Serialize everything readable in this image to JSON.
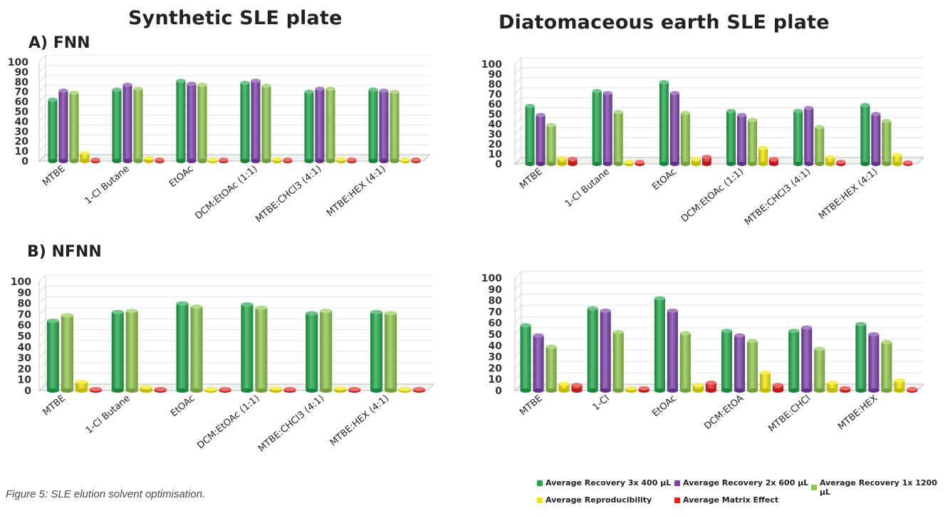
{
  "headings": {
    "synthetic": "Synthetic SLE plate",
    "diatomaceous": "Diatomaceous earth SLE plate",
    "section_a": "A) FNN",
    "section_b": "B) NFNN"
  },
  "caption": "Figure 5: SLE elution solvent optimisation.",
  "colors": {
    "recovery_3x": "#1fa64a",
    "recovery_2x": "#7b3fa8",
    "recovery_1x": "#8dc64b",
    "reproducibility": "#f2e600",
    "matrix_effect": "#e5201d"
  },
  "legend": [
    {
      "label": "Average Recovery 3x 400 µL",
      "color": "#1fa64a"
    },
    {
      "label": "Average Recovery 2x 600 µL",
      "color": "#7b3fa8"
    },
    {
      "label": "Average Recovery 1x 1200 µL",
      "color": "#8dc64b"
    },
    {
      "label": "Average Reproducibility",
      "color": "#f2e600"
    },
    {
      "label": "Average Matrix Effect",
      "color": "#e5201d"
    }
  ],
  "chart_data": [
    {
      "type": "bar",
      "ylim": [
        0,
        100
      ],
      "yticks": [
        0,
        10,
        20,
        30,
        40,
        50,
        60,
        70,
        80,
        90,
        100
      ],
      "categories": [
        "MTBE",
        "1-Cl Butane",
        "EtOAc",
        "DCM:EtOAc (1:1)",
        "MTBE:CHCl3 (4:1)",
        "MTBE:HEX (4:1)"
      ],
      "series": [
        {
          "name": "Average Recovery 3x 400 µL",
          "color": "#1fa64a",
          "values": [
            62,
            72,
            81,
            79,
            70,
            72
          ]
        },
        {
          "name": "Average Recovery 2x 600 µL",
          "color": "#7b3fa8",
          "values": [
            71,
            77,
            78,
            81,
            73,
            71
          ]
        },
        {
          "name": "Average Recovery 1x 1200 µL",
          "color": "#8dc64b",
          "values": [
            69,
            73,
            77,
            76,
            73,
            70
          ]
        },
        {
          "name": "Average Reproducibility",
          "color": "#f2e600",
          "values": [
            8,
            3,
            1,
            2,
            2,
            1
          ]
        },
        {
          "name": "Average Matrix Effect",
          "color": "#e5201d",
          "values": [
            1,
            1,
            1,
            1,
            1,
            1
          ]
        }
      ],
      "grid": true
    },
    {
      "type": "bar",
      "ylim": [
        0,
        100
      ],
      "yticks": [
        0,
        10,
        20,
        30,
        40,
        50,
        60,
        70,
        80,
        90,
        100
      ],
      "categories": [
        "MTBE",
        "1-Cl Butane",
        "EtOAc",
        "DCM:EtOAc (1:1)",
        "MTBE:CHCl3 (4:1)",
        "MTBE:HEX (4:1)"
      ],
      "series": [
        {
          "name": "Average Recovery 3x 400 µL",
          "color": "#1fa64a",
          "values": [
            58,
            73,
            82,
            53,
            53,
            59
          ]
        },
        {
          "name": "Average Recovery 2x 600 µL",
          "color": "#7b3fa8",
          "values": [
            49,
            71,
            71,
            49,
            56,
            50
          ]
        },
        {
          "name": "Average Recovery 1x 1200 µL",
          "color": "#8dc64b",
          "values": [
            39,
            52,
            51,
            44,
            37,
            43
          ]
        },
        {
          "name": "Average Reproducibility",
          "color": "#f2e600",
          "values": [
            6,
            2,
            5,
            16,
            7,
            9
          ]
        },
        {
          "name": "Average Matrix Effect",
          "color": "#e5201d",
          "values": [
            5,
            2,
            7,
            5,
            2,
            1
          ]
        }
      ],
      "grid": true
    },
    {
      "type": "bar",
      "ylim": [
        0,
        100
      ],
      "yticks": [
        0,
        10,
        20,
        30,
        40,
        50,
        60,
        70,
        80,
        90,
        100
      ],
      "categories": [
        "MTBE",
        "1-Cl Butane",
        "EtOAc",
        "DCM:EtOAc (1:1)",
        "MTBE:CHCl3 (4:1)",
        "MTBE:HEX (4:1)"
      ],
      "series": [
        {
          "name": "Average Recovery 3x 400 µL",
          "color": "#1fa64a",
          "values": [
            64,
            72,
            80,
            79,
            71,
            72
          ]
        },
        {
          "name": "Average Recovery 1x 1200 µL",
          "color": "#8dc64b",
          "values": [
            69,
            73,
            77,
            76,
            73,
            71
          ]
        },
        {
          "name": "Average Reproducibility",
          "color": "#f2e600",
          "values": [
            8,
            3,
            1,
            2,
            2,
            1
          ]
        },
        {
          "name": "Average Matrix Effect",
          "color": "#e5201d",
          "values": [
            1,
            1,
            1,
            1,
            1,
            1
          ]
        }
      ],
      "grid": true
    },
    {
      "type": "bar",
      "ylim": [
        0,
        100
      ],
      "yticks": [
        0,
        10,
        20,
        30,
        40,
        50,
        60,
        70,
        80,
        90,
        100
      ],
      "categories": [
        "MTBE",
        "1-Cl",
        "EtOAc",
        "DCM:EtOA",
        "MTBE:CHCl",
        "MTBE:HEX"
      ],
      "series": [
        {
          "name": "Average Recovery 3x 400 µL",
          "color": "#1fa64a",
          "values": [
            58,
            73,
            82,
            53,
            53,
            59
          ]
        },
        {
          "name": "Average Recovery 2x 600 µL",
          "color": "#7b3fa8",
          "values": [
            49,
            71,
            71,
            49,
            56,
            50
          ]
        },
        {
          "name": "Average Recovery 1x 1200 µL",
          "color": "#8dc64b",
          "values": [
            39,
            52,
            51,
            44,
            37,
            43
          ]
        },
        {
          "name": "Average Reproducibility",
          "color": "#f2e600",
          "values": [
            6,
            2,
            5,
            16,
            7,
            9
          ]
        },
        {
          "name": "Average Matrix Effect",
          "color": "#e5201d",
          "values": [
            5,
            2,
            7,
            5,
            2,
            1
          ]
        }
      ],
      "grid": true
    }
  ]
}
